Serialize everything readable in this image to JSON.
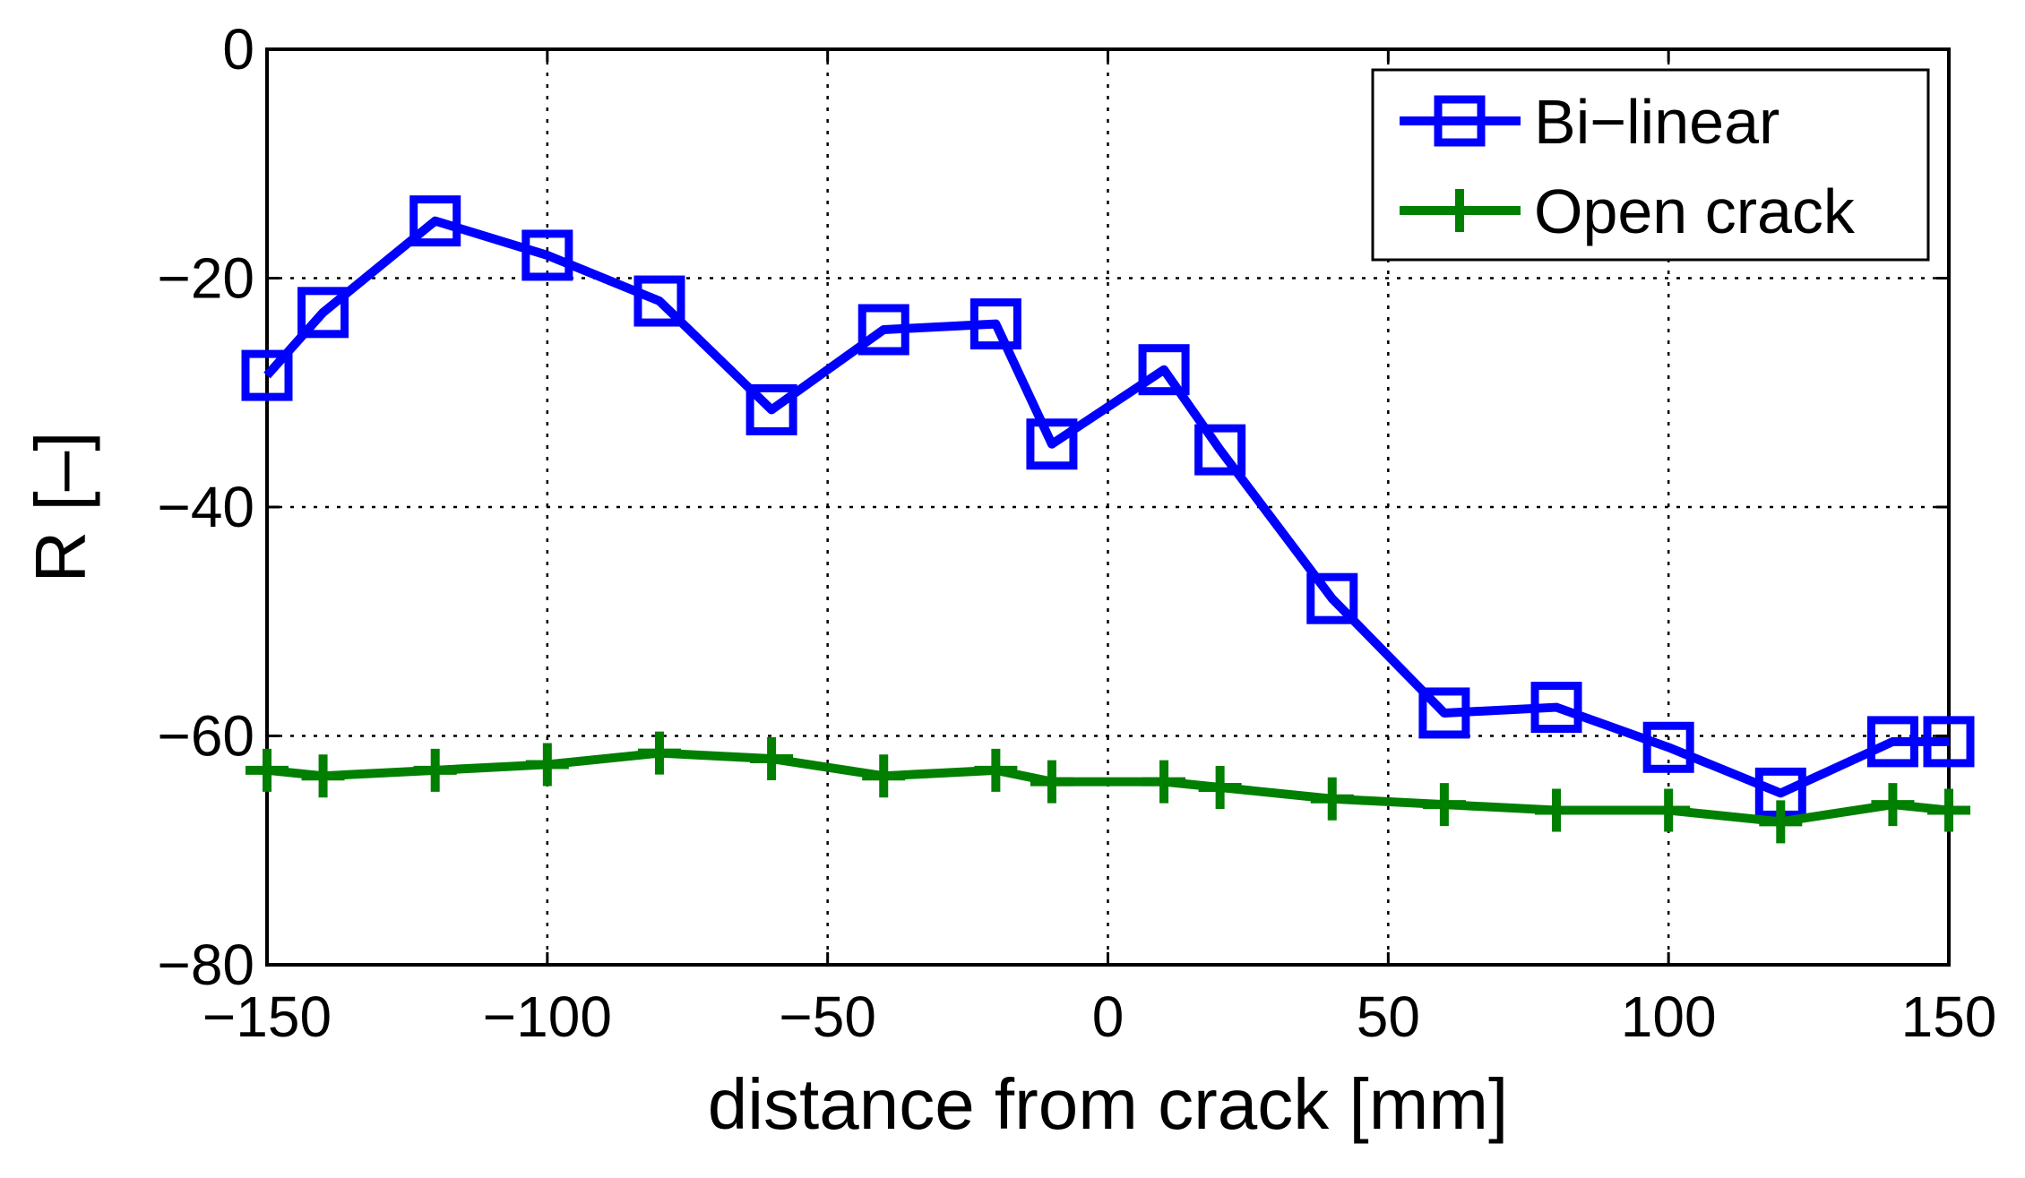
{
  "chart_data": {
    "type": "line",
    "title": "",
    "xlabel": "distance from crack [mm]",
    "ylabel": "R [–]",
    "xlim": [
      -150,
      150
    ],
    "ylim": [
      -80,
      0
    ],
    "xticks": [
      -150,
      -100,
      -50,
      0,
      50,
      100,
      150
    ],
    "yticks": [
      -80,
      -60,
      -40,
      -20,
      0
    ],
    "xtick_labels": [
      "−150",
      "−100",
      "−50",
      "0",
      "50",
      "100",
      "150"
    ],
    "ytick_labels": [
      "−80",
      "−60",
      "−40",
      "−20",
      "0"
    ],
    "grid": true,
    "legend_position": "top-right",
    "x": [
      -150,
      -140,
      -120,
      -100,
      -80,
      -60,
      -40,
      -20,
      -10,
      10,
      20,
      40,
      60,
      80,
      100,
      120,
      140,
      150
    ],
    "series": [
      {
        "name": "Bi−linear",
        "color": "#0000ff",
        "marker": "square",
        "values": [
          -28.5,
          -23,
          -15,
          -18,
          -22,
          -31.5,
          -24.5,
          -24,
          -34.5,
          -28,
          -35,
          -48,
          -58,
          -57.5,
          -61,
          -65,
          -60.5,
          -60.5
        ]
      },
      {
        "name": "Open crack",
        "color": "#007f00",
        "marker": "plus",
        "values": [
          -63,
          -63.5,
          -63,
          -62.5,
          -61.5,
          -62,
          -63.5,
          -63,
          -64,
          -64,
          -64.5,
          -65.5,
          -66,
          -66.5,
          -66.5,
          -67.5,
          -66,
          -66.5
        ]
      }
    ]
  }
}
